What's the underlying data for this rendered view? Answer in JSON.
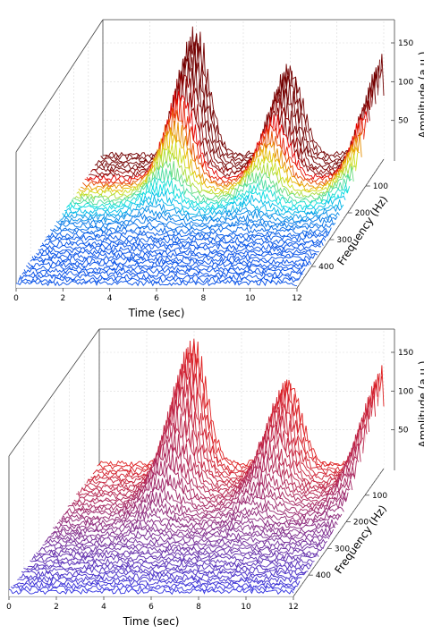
{
  "chart_data": [
    {
      "type": "waterfall-3d",
      "coloring": "jet colormap by amplitude (blue low, green/yellow mid, red high)",
      "xlabel": "Time (sec)",
      "ylabel": "Frequency (Hz)",
      "zlabel": "Amplitude (a.u.)",
      "x_ticks": [
        "0",
        "2",
        "4",
        "6",
        "8",
        "10",
        "12"
      ],
      "xlim": [
        0,
        12
      ],
      "y_ticks": [
        "100",
        "200",
        "300",
        "400"
      ],
      "ylim": [
        0,
        480
      ],
      "z_ticks": [
        "50",
        "100",
        "150"
      ],
      "zlim": [
        0,
        180
      ],
      "bursts": [
        {
          "center_time": 4.0,
          "peak_amplitude": 168
        },
        {
          "center_time": 8.0,
          "peak_amplitude": 120
        },
        {
          "center_time": 12.0,
          "peak_amplitude": 130
        }
      ],
      "colors": {
        "low": "#3030e0",
        "high": "#e02020"
      }
    },
    {
      "type": "waterfall-3d",
      "coloring": "gradient by frequency (red at low frequency, blue at high frequency)",
      "xlabel": "Time (sec)",
      "ylabel": "Frequency (Hz)",
      "zlabel": "Amplitude (a.u.)",
      "x_ticks": [
        "0",
        "2",
        "4",
        "6",
        "8",
        "10",
        "12"
      ],
      "xlim": [
        0,
        12
      ],
      "y_ticks": [
        "100",
        "200",
        "300",
        "400"
      ],
      "ylim": [
        0,
        480
      ],
      "z_ticks": [
        "50",
        "100",
        "150"
      ],
      "zlim": [
        0,
        180
      ],
      "bursts": [
        {
          "center_time": 4.0,
          "peak_amplitude": 168
        },
        {
          "center_time": 8.0,
          "peak_amplitude": 115
        },
        {
          "center_time": 12.0,
          "peak_amplitude": 128
        }
      ],
      "colors": {
        "low": "#3030e0",
        "high": "#e02020"
      }
    }
  ]
}
